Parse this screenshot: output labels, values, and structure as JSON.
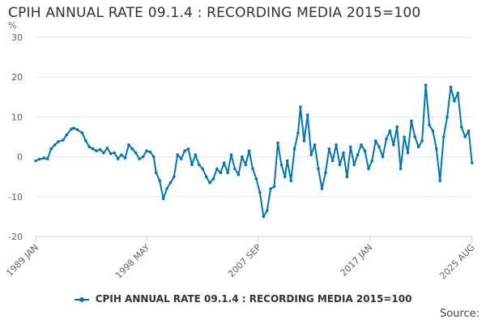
{
  "chart_data": {
    "type": "line",
    "title": "CPIH ANNUAL RATE 09.1.4 : RECORDING MEDIA 2015=100",
    "ylabel": "%",
    "xlabel": "",
    "ylim": [
      -20,
      30
    ],
    "yticks": [
      30,
      20,
      10,
      0,
      -10,
      -20
    ],
    "xlim": [
      1989.0,
      2025.6
    ],
    "xticks": [
      {
        "label": "1989 JAN",
        "x": 1989.0
      },
      {
        "label": "1998 MAY",
        "x": 1998.33
      },
      {
        "label": "2007 SEP",
        "x": 2007.67
      },
      {
        "label": "2017 JAN",
        "x": 2017.0
      },
      {
        "label": "2025 AUG",
        "x": 2025.58
      }
    ],
    "grid": true,
    "legend_position": "bottom",
    "series": [
      {
        "name": "CPIH ANNUAL RATE 09.1.4 : RECORDING MEDIA 2015=100",
        "color": "#0075b3",
        "x": [
          1989.0,
          1989.3,
          1989.7,
          1990.0,
          1990.3,
          1990.6,
          1990.9,
          1991.3,
          1991.6,
          1992.0,
          1992.2,
          1992.5,
          1992.9,
          1993.2,
          1993.5,
          1993.8,
          1994.1,
          1994.4,
          1994.7,
          1995.0,
          1995.3,
          1995.6,
          1995.9,
          1996.2,
          1996.5,
          1996.8,
          1997.1,
          1997.4,
          1997.7,
          1998.0,
          1998.3,
          1998.6,
          1998.9,
          1999.1,
          1999.4,
          1999.7,
          2000.0,
          2000.3,
          2000.6,
          2000.9,
          2001.2,
          2001.5,
          2001.8,
          2002.1,
          2002.4,
          2002.7,
          2003.0,
          2003.3,
          2003.6,
          2003.9,
          2004.2,
          2004.5,
          2004.8,
          2005.1,
          2005.4,
          2005.7,
          2006.0,
          2006.3,
          2006.6,
          2006.9,
          2007.2,
          2007.5,
          2007.8,
          2008.1,
          2008.4,
          2008.7,
          2009.0,
          2009.3,
          2009.6,
          2009.9,
          2010.1,
          2010.4,
          2010.7,
          2011.0,
          2011.2,
          2011.5,
          2011.8,
          2012.1,
          2012.4,
          2012.7,
          2013.0,
          2013.3,
          2013.6,
          2013.9,
          2014.2,
          2014.5,
          2014.8,
          2015.1,
          2015.4,
          2015.7,
          2016.0,
          2016.3,
          2016.6,
          2016.9,
          2017.2,
          2017.5,
          2017.8,
          2018.1,
          2018.4,
          2018.7,
          2019.0,
          2019.3,
          2019.6,
          2019.9,
          2020.2,
          2020.5,
          2020.8,
          2021.1,
          2021.4,
          2021.7,
          2022.0,
          2022.3,
          2022.6,
          2022.9,
          2023.2,
          2023.5,
          2023.8,
          2024.1,
          2024.4,
          2024.7,
          2025.0,
          2025.3,
          2025.58
        ],
        "values": [
          -1.0,
          -0.6,
          -0.3,
          -0.5,
          2.0,
          3.0,
          3.8,
          4.2,
          5.5,
          7.0,
          7.2,
          6.8,
          6.0,
          4.0,
          2.5,
          2.0,
          1.5,
          1.8,
          1.0,
          2.2,
          0.8,
          1.0,
          -0.5,
          0.5,
          -0.3,
          3.0,
          2.0,
          1.0,
          -0.5,
          0.0,
          1.5,
          1.2,
          0.0,
          -4.0,
          -6.0,
          -10.5,
          -8.0,
          -6.5,
          -5.0,
          0.5,
          -0.5,
          1.5,
          2.0,
          -2.0,
          0.5,
          -2.0,
          -3.0,
          -5.0,
          -6.5,
          -5.5,
          -3.0,
          -4.0,
          -1.5,
          -4.0,
          0.5,
          -3.0,
          -4.5,
          0.0,
          -2.0,
          1.5,
          -3.0,
          -5.5,
          -9.0,
          -15.0,
          -13.5,
          -8.0,
          -7.5,
          3.5,
          -2.0,
          -5.0,
          -1.0,
          -6.0,
          2.0,
          6.0,
          12.5,
          4.0,
          10.5,
          0.5,
          3.0,
          -3.0,
          -8.0,
          -4.0,
          2.0,
          -1.0,
          3.0,
          -2.0,
          1.0,
          -5.0,
          2.5,
          -2.0,
          0.5,
          3.0,
          1.5,
          -3.0,
          -1.0,
          4.0,
          2.5,
          0.0,
          4.5,
          6.5,
          3.0,
          7.5,
          -3.0,
          5.0,
          1.0,
          9.0,
          5.0,
          2.5,
          4.0,
          18.0,
          8.0,
          6.5,
          2.0,
          -6.0,
          5.0,
          10.0,
          17.5,
          14.0,
          16.0,
          7.5,
          5.0,
          6.5,
          -1.5
        ]
      }
    ]
  },
  "legend_label": "CPIH ANNUAL RATE 09.1.4 : RECORDING MEDIA 2015=100",
  "source_text": "Source:"
}
